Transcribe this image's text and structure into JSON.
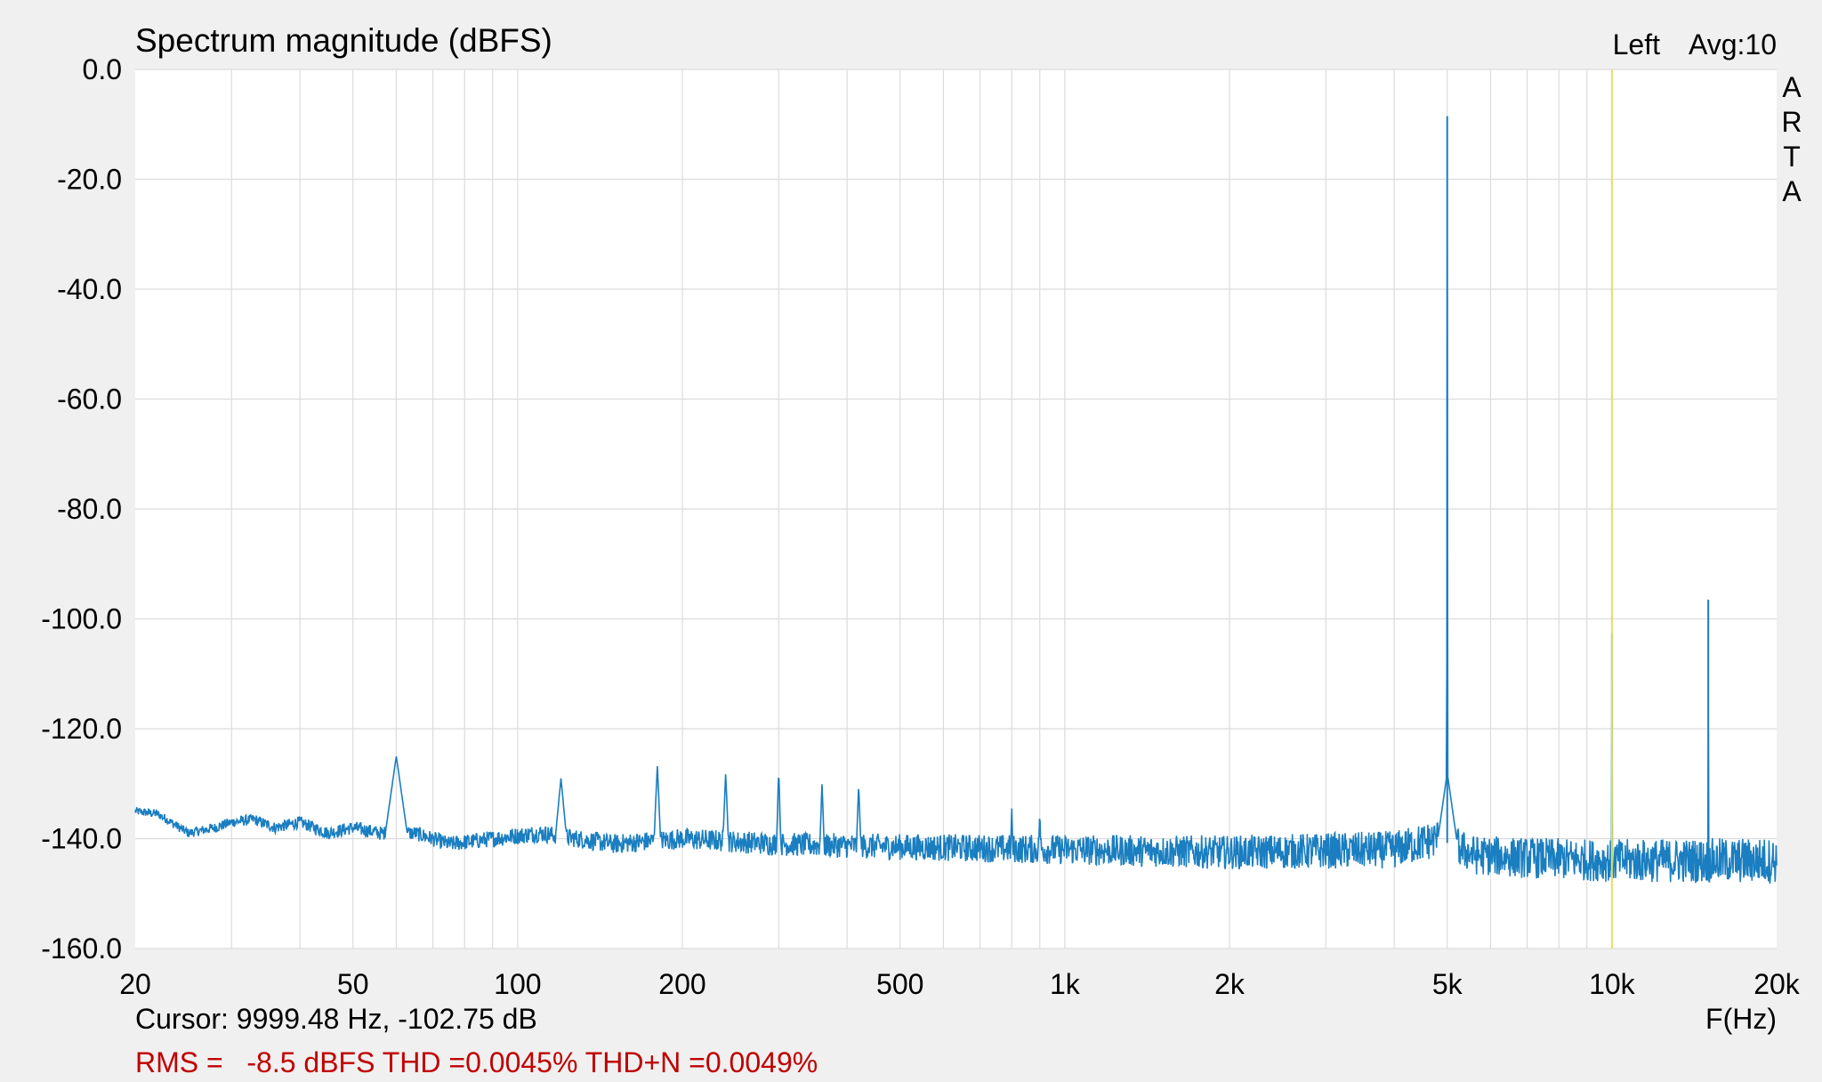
{
  "chart_data": {
    "type": "line",
    "title": "Spectrum magnitude (dBFS)",
    "channel_label": "Left",
    "avg_label": "Avg:10",
    "watermark": [
      "A",
      "R",
      "T",
      "A"
    ],
    "xlabel": "F(Hz)",
    "ylabel": "",
    "x_scale": "log",
    "xlim": [
      20,
      20000
    ],
    "ylim": [
      -160,
      0
    ],
    "grid": true,
    "x_ticks": [
      {
        "value": 20,
        "label": "20"
      },
      {
        "value": 50,
        "label": "50"
      },
      {
        "value": 100,
        "label": "100"
      },
      {
        "value": 200,
        "label": "200"
      },
      {
        "value": 500,
        "label": "500"
      },
      {
        "value": 1000,
        "label": "1k"
      },
      {
        "value": 2000,
        "label": "2k"
      },
      {
        "value": 5000,
        "label": "5k"
      },
      {
        "value": 10000,
        "label": "10k"
      },
      {
        "value": 20000,
        "label": "20k"
      }
    ],
    "y_ticks": [
      {
        "value": 0,
        "label": "0.0"
      },
      {
        "value": -20,
        "label": "-20.0"
      },
      {
        "value": -40,
        "label": "-40.0"
      },
      {
        "value": -60,
        "label": "-60.0"
      },
      {
        "value": -80,
        "label": "-80.0"
      },
      {
        "value": -100,
        "label": "-100.0"
      },
      {
        "value": -120,
        "label": "-120.0"
      },
      {
        "value": -140,
        "label": "-140.0"
      },
      {
        "value": -160,
        "label": "-160.0"
      }
    ],
    "series_color": "#1a7ec0",
    "cursor_color": "#e0e060",
    "cursor": {
      "freq": 9999.48,
      "level": -102.75,
      "text": "Cursor: 9999.48 Hz, -102.75 dB"
    },
    "measurement_text": "RMS =   -8.5 dBFS THD =0.0045% THD+N =0.0049%",
    "measurement_color": "#c00000",
    "noise_floor": [
      [
        20,
        -135
      ],
      [
        22,
        -135.5
      ],
      [
        25,
        -139
      ],
      [
        28,
        -138
      ],
      [
        30,
        -137
      ],
      [
        33,
        -136.5
      ],
      [
        36,
        -138
      ],
      [
        40,
        -137
      ],
      [
        45,
        -139
      ],
      [
        50,
        -138
      ],
      [
        56,
        -139
      ],
      [
        65,
        -139
      ],
      [
        75,
        -141
      ],
      [
        90,
        -140
      ],
      [
        110,
        -139
      ],
      [
        150,
        -141
      ],
      [
        200,
        -140
      ],
      [
        300,
        -141
      ],
      [
        500,
        -141.5
      ],
      [
        1000,
        -142
      ],
      [
        2000,
        -142.5
      ],
      [
        4000,
        -142
      ],
      [
        4800,
        -140
      ],
      [
        5600,
        -143
      ],
      [
        7000,
        -143.5
      ],
      [
        10000,
        -144
      ],
      [
        15000,
        -144
      ],
      [
        20000,
        -144
      ]
    ],
    "peaks": [
      {
        "freq": 60,
        "level": -125,
        "width": 0.02
      },
      {
        "freq": 120,
        "level": -129,
        "width": 0.01
      },
      {
        "freq": 180,
        "level": -126.5,
        "width": 0.006
      },
      {
        "freq": 240,
        "level": -128,
        "width": 0.005
      },
      {
        "freq": 300,
        "level": -127.5,
        "width": 0.004
      },
      {
        "freq": 360,
        "level": -130,
        "width": 0.004
      },
      {
        "freq": 420,
        "level": -130,
        "width": 0.004
      },
      {
        "freq": 800,
        "level": -134,
        "width": 0.002
      },
      {
        "freq": 900,
        "level": -135,
        "width": 0.002
      },
      {
        "freq": 5000,
        "level": -8.5,
        "width": 0.001
      },
      {
        "freq": 10000,
        "level": -102.75,
        "width": 0.0005
      },
      {
        "freq": 15000,
        "level": -96.5,
        "width": 0.0005
      }
    ]
  }
}
